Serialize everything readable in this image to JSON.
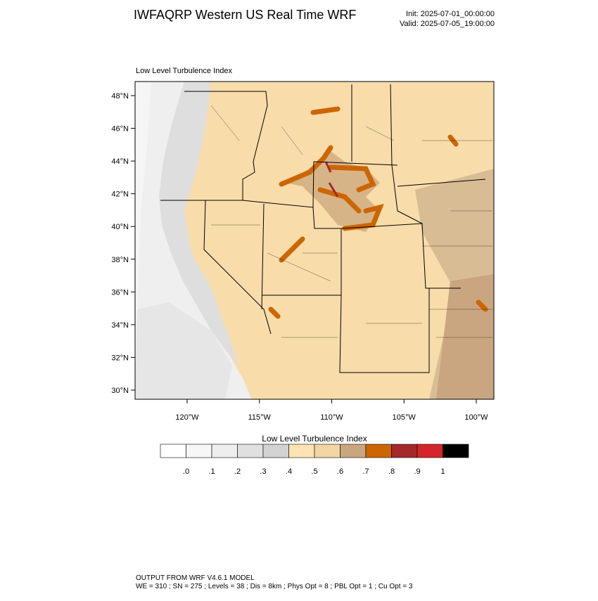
{
  "header": {
    "title": "IWFAQRP Western US Real Time WRF",
    "init": "Init: 2025-07-01_00:00:00",
    "valid": "Valid: 2025-07-05_19:00:00"
  },
  "map": {
    "label": "Low Level Turbulence Index",
    "lat_labels": [
      "48°N",
      "46°N",
      "44°N",
      "42°N",
      "40°N",
      "38°N",
      "36°N",
      "34°N",
      "32°N",
      "30°N"
    ],
    "lon_labels": [
      "120°W",
      "115°W",
      "110°W",
      "105°W",
      "100°W"
    ]
  },
  "colorbar": {
    "title": "Low Level Turbulence Index",
    "colors": [
      "#ffffff",
      "#f7f7f7",
      "#eeeeee",
      "#e0e0e0",
      "#d2d2d2",
      "#ffe3b3",
      "#f3d5a3",
      "#c9a67f",
      "#cc6600",
      "#a3292b",
      "#d4252b",
      "#000000"
    ],
    "labels": [
      ".0",
      ".1",
      ".2",
      ".3",
      ".4",
      ".5",
      ".6",
      ".7",
      ".8",
      ".9",
      "1"
    ]
  },
  "footer": {
    "line1": "OUTPUT FROM WRF V4.6.1 MODEL",
    "line2": "WE = 310 ; SN = 275 ; Levels = 38 ; Dis = 8km ; Phys Opt = 8 ; PBL Opt = 1 ; Cu Opt = 3"
  }
}
